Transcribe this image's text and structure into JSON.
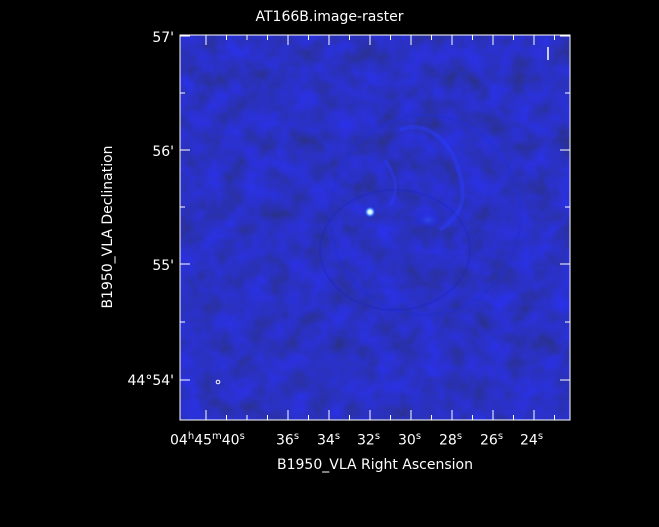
{
  "plot": {
    "title": "AT166B.image-raster",
    "xlabel": "B1950_VLA Right Ascension",
    "ylabel": "B1950_VLA Declination",
    "dec_ticks": [
      {
        "label": "57'"
      },
      {
        "label": "56'"
      },
      {
        "label": "55'"
      },
      {
        "label": "44°54'"
      }
    ],
    "ra_ticks": [
      {
        "label": "04h45m40s"
      },
      {
        "label": "36s"
      },
      {
        "label": "34s"
      },
      {
        "label": "32s"
      },
      {
        "label": "30s"
      },
      {
        "label": "28s"
      },
      {
        "label": "26s"
      },
      {
        "label": "24s"
      }
    ]
  },
  "colors": {
    "background": "#000000",
    "frame": "#ffffff",
    "raster_base": "#0a0aa0",
    "raster_dark": "#05055a",
    "raster_light": "#2a3cff",
    "source_core": "#dfffff"
  }
}
